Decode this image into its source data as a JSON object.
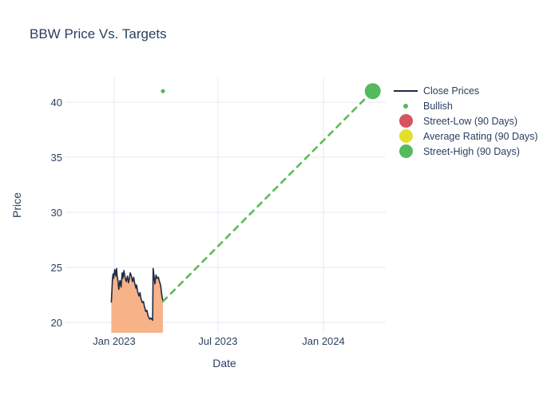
{
  "chart_data": {
    "type": "line",
    "title": "BBW Price Vs. Targets",
    "xlabel": "Date",
    "ylabel": "Price",
    "grid": true,
    "legend_position": "right",
    "x_tick_labels": [
      {
        "date": "2023-01-01",
        "label": "Jan 2023"
      },
      {
        "date": "2023-07-01",
        "label": "Jul 2023"
      },
      {
        "date": "2024-01-01",
        "label": "Jan 2024"
      }
    ],
    "y_ticks": [
      20,
      25,
      30,
      35,
      40
    ],
    "x_range": [
      "2022-10-08",
      "2024-04-18"
    ],
    "y_range": [
      19.0,
      42.3
    ],
    "series": {
      "close_prices": {
        "name": "Close Prices",
        "start_date": "2022-12-27",
        "day_offsets": [
          0,
          2,
          3,
          4,
          6,
          8,
          9,
          10,
          12,
          13,
          15,
          17,
          19,
          20,
          22,
          24,
          26,
          28,
          30,
          31,
          33,
          35,
          37,
          39,
          41,
          43,
          44,
          46,
          48,
          50,
          52,
          54,
          56,
          58,
          60,
          62,
          64,
          67,
          69,
          72,
          73,
          75,
          76,
          78,
          80,
          82,
          84,
          86,
          88,
          90
        ],
        "values": [
          21.8,
          23.9,
          24.4,
          24.0,
          24.8,
          24.2,
          24.9,
          24.3,
          23.6,
          23.0,
          23.8,
          23.2,
          24.5,
          24.0,
          24.7,
          24.1,
          23.7,
          24.2,
          23.6,
          23.9,
          24.5,
          24.2,
          23.7,
          24.1,
          23.5,
          23.1,
          23.4,
          22.8,
          22.4,
          22.7,
          22.1,
          21.8,
          21.9,
          21.4,
          21.0,
          21.1,
          20.6,
          20.3,
          20.4,
          20.2,
          24.9,
          24.0,
          23.5,
          24.3,
          24.0,
          24.1,
          23.7,
          23.4,
          22.5,
          21.9
        ]
      },
      "bullish": {
        "name": "Bullish",
        "points": [
          {
            "date": "2023-03-27",
            "value": 41
          }
        ]
      },
      "street_low": {
        "name": "Street-Low (90 Days)",
        "points": []
      },
      "average_rating": {
        "name": "Average Rating (90 Days)",
        "points": []
      },
      "street_high": {
        "name": "Street-High (90 Days)",
        "points": [
          {
            "date": "2024-03-27",
            "value": 41
          }
        ]
      },
      "target_trend_line": {
        "name": "Target Trend",
        "style": "dashed",
        "from": {
          "date": "2023-03-27",
          "value": 21.9
        },
        "to": {
          "date": "2024-03-27",
          "value": 41
        }
      }
    },
    "legend": {
      "items": [
        {
          "label": "Close Prices",
          "marker": "line",
          "color": "#1f2b45"
        },
        {
          "label": "Bullish",
          "marker": "dot-small",
          "color": "#53ba5e"
        },
        {
          "label": "Street-Low (90 Days)",
          "marker": "dot-large",
          "color": "#d4555e"
        },
        {
          "label": "Average Rating (90 Days)",
          "marker": "dot-large",
          "color": "#e3df2d"
        },
        {
          "label": "Street-High (90 Days)",
          "marker": "dot-large",
          "color": "#53ba5e"
        }
      ]
    },
    "colors": {
      "close_line": "#1f2b45",
      "close_fill": "#f7b287",
      "bullish_green": "#53ba5e",
      "street_low_red": "#d4555e",
      "average_yellow": "#e3df2d",
      "street_high_green": "#53ba5e",
      "trend_dash_green": "#5cbb58",
      "grid": "#e9eef6",
      "text": "#2a3f5f"
    }
  }
}
